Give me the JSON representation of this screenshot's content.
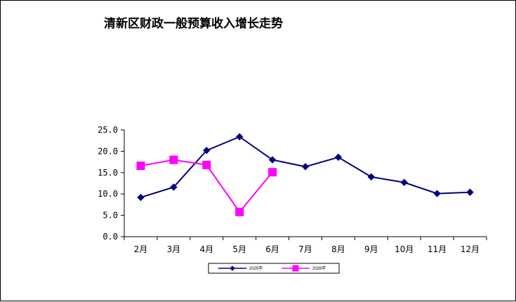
{
  "chart_data": {
    "type": "line",
    "title": "清新区财政一般预算收入增长走势",
    "categories": [
      "2月",
      "3月",
      "4月",
      "5月",
      "6月",
      "7月",
      "8月",
      "9月",
      "10月",
      "11月",
      "12月"
    ],
    "ylim": [
      0,
      25
    ],
    "yticks": [
      "0.0",
      "5.0",
      "10.0",
      "15.0",
      "20.0",
      "25.0"
    ],
    "grid": false,
    "legend_position": "bottom",
    "series": [
      {
        "name": "2025年",
        "color": "#000080",
        "marker": "diamond",
        "values": [
          9.2,
          11.6,
          20.2,
          23.4,
          18.0,
          16.4,
          18.6,
          14.0,
          12.7,
          10.1,
          10.4
        ]
      },
      {
        "name": "2026年",
        "color": "#FF00FF",
        "marker": "square",
        "values": [
          16.6,
          18.0,
          16.8,
          5.8,
          15.1,
          null,
          null,
          null,
          null,
          null,
          null
        ]
      }
    ]
  }
}
